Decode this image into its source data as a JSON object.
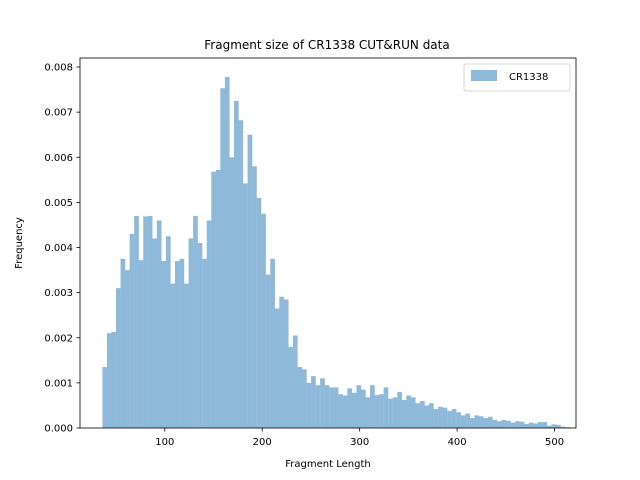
{
  "chart_data": {
    "type": "bar",
    "title": "Fragment size of CR1338 CUT&RUN data",
    "xlabel": "Fragment Length",
    "ylabel": "Frequency",
    "xlim": [
      13,
      522
    ],
    "ylim": [
      0,
      0.0082
    ],
    "xticks": [
      100,
      200,
      300,
      400,
      500
    ],
    "xtick_labels": [
      "100",
      "200",
      "300",
      "400",
      "500"
    ],
    "yticks": [
      0,
      0.001,
      0.002,
      0.003,
      0.004,
      0.005,
      0.006,
      0.007,
      0.008
    ],
    "ytick_labels": [
      "0.000",
      "0.001",
      "0.002",
      "0.003",
      "0.004",
      "0.005",
      "0.006",
      "0.007",
      "0.008"
    ],
    "grid": false,
    "legend_position": "top-right",
    "series": [
      {
        "name": "CR1338",
        "color": "#8fb9d9",
        "bin_start": 36,
        "bin_width": 4.655,
        "values": [
          0.00135,
          0.0021,
          0.00213,
          0.0031,
          0.00375,
          0.0035,
          0.0043,
          0.0047,
          0.00372,
          0.00469,
          0.0047,
          0.0042,
          0.0046,
          0.0037,
          0.00425,
          0.0032,
          0.0037,
          0.00375,
          0.0032,
          0.0042,
          0.0047,
          0.0041,
          0.00375,
          0.0046,
          0.00568,
          0.00572,
          0.00753,
          0.00778,
          0.006,
          0.00725,
          0.00682,
          0.00542,
          0.0065,
          0.0058,
          0.0051,
          0.00475,
          0.0034,
          0.00375,
          0.00265,
          0.00291,
          0.00285,
          0.0018,
          0.00205,
          0.00135,
          0.0013,
          0.001,
          0.00115,
          0.00095,
          0.0011,
          0.00095,
          0.0009,
          0.0009,
          0.00075,
          0.00072,
          0.00088,
          0.00078,
          0.00095,
          0.00085,
          0.00068,
          0.00095,
          0.00073,
          0.00075,
          0.0009,
          0.00065,
          0.00068,
          0.0008,
          0.00062,
          0.00072,
          0.00068,
          0.00055,
          0.0006,
          0.0005,
          0.00055,
          0.00042,
          0.00047,
          0.00045,
          0.00038,
          0.00042,
          0.00035,
          0.00028,
          0.00032,
          0.00022,
          0.00028,
          0.00026,
          0.00022,
          0.00025,
          0.00018,
          0.00015,
          0.00018,
          0.00016,
          0.00012,
          0.00015,
          0.00014,
          9e-05,
          0.00012,
          0.0001,
          0.00013,
          0.00013,
          5e-05,
          8e-05,
          7e-05,
          3e-05,
          2e-05
        ]
      }
    ]
  }
}
